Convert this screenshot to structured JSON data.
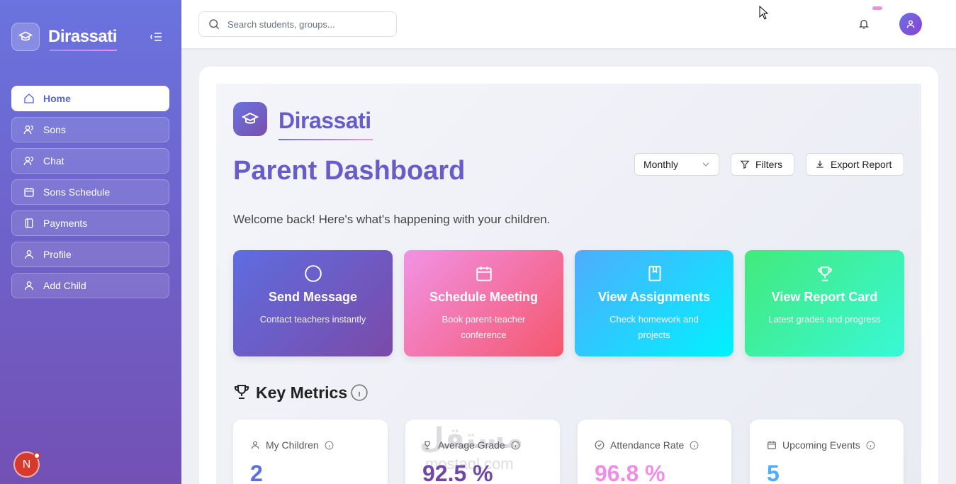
{
  "sidebar": {
    "brand": "Dirassati",
    "nav": [
      "Home",
      "Sons",
      "Chat",
      "Sons Schedule",
      "Payments",
      "Profile",
      "Add Child"
    ],
    "avatar": "N"
  },
  "topbar": {
    "search_placeholder": "Search students, groups..."
  },
  "header": {
    "brand": "Dirassati",
    "title": "Parent Dashboard",
    "subtitle": "Welcome back! Here's what's happening with your children.",
    "period": "Monthly",
    "filters": "Filters",
    "export": "Export Report"
  },
  "actions": [
    {
      "title": "Send Message",
      "description": "Contact teachers instantly"
    },
    {
      "title": "Schedule Meeting",
      "description": "Book parent-teacher conference"
    },
    {
      "title": "View Assignments",
      "description": "Check homework and projects"
    },
    {
      "title": "View Report Card",
      "description": "Latest grades and progress"
    }
  ],
  "metrics": {
    "title": "Key Metrics",
    "items": [
      {
        "label": "My Children",
        "value": "2"
      },
      {
        "label": "Average Grade",
        "value": "92.5 %"
      },
      {
        "label": "Attendance Rate",
        "value": "96.8 %"
      },
      {
        "label": "Upcoming Events",
        "value": "5"
      }
    ]
  },
  "watermark": {
    "arabic": "مستقل",
    "latin": "mostaql.com"
  }
}
